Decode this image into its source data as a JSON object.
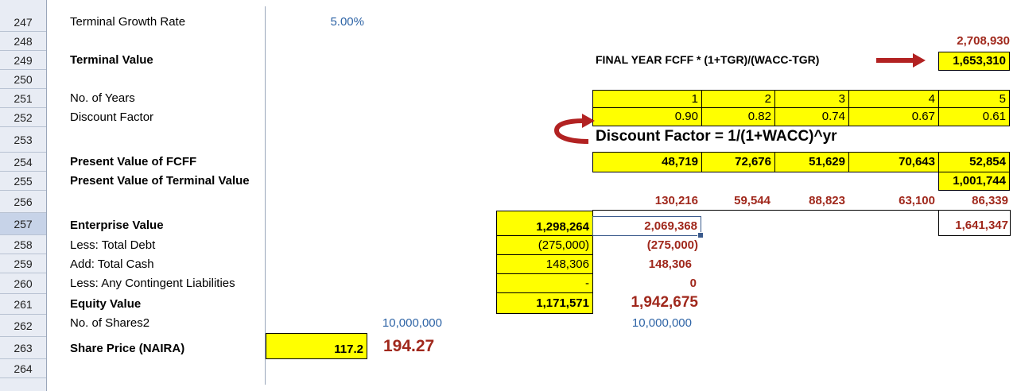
{
  "rows": [
    "247",
    "248",
    "249",
    "250",
    "251",
    "252",
    "253",
    "254",
    "255",
    "256",
    "257",
    "258",
    "259",
    "260",
    "261",
    "262",
    "263",
    "264"
  ],
  "labels": {
    "r247": "Terminal Growth Rate",
    "r249": "Terminal Value",
    "r251": "No. of Years",
    "r252": "Discount Factor",
    "r254": "Present Value of FCFF",
    "r255": "Present Value of Terminal Value",
    "r257": "Enterprise Value",
    "r258": "Less: Total Debt",
    "r259": "Add: Total Cash",
    "r260": "Less: Any Contingent Liabilities",
    "r261": "Equity Value",
    "r262": "No. of Shares2",
    "r263": "Share Price (NAIRA)"
  },
  "values": {
    "tgr": "5.00%",
    "tv_top": "2,708,930",
    "tv_formula": "FINAL YEAR FCFF * (1+TGR)/(WACC-TGR)",
    "tv": "1,653,310",
    "years": [
      "1",
      "2",
      "3",
      "4",
      "5"
    ],
    "discount": [
      "0.90",
      "0.82",
      "0.74",
      "0.67",
      "0.61"
    ],
    "df_formula": "Discount Factor = 1/(1+WACC)^yr",
    "pv_fcff": [
      "48,719",
      "72,676",
      "51,629",
      "70,643",
      "52,854"
    ],
    "pv_tv": "1,001,744",
    "r256": [
      "130,216",
      "59,544",
      "88,823",
      "63,100",
      "86,339"
    ],
    "ev": "1,298,264",
    "ev2": "2,069,368",
    "ev3": "1,641,347",
    "debt": "(275,000)",
    "debt2": "(275,000)",
    "cash": "148,306",
    "cash2": "148,306",
    "contingent": "-",
    "contingent2": "0",
    "equity": "1,171,571",
    "equity2": "1,942,675",
    "shares": "10,000,000",
    "shares2": "10,000,000",
    "share_price": "117.2",
    "share_price2": "194.27"
  },
  "colors": {
    "highlight": "#ffff00",
    "accent_red": "#a0281c",
    "accent_blue": "#2e64a6"
  }
}
